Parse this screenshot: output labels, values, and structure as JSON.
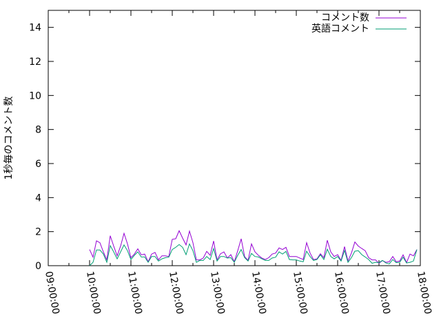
{
  "chart_data": {
    "type": "line",
    "title": "",
    "xlabel": "",
    "ylabel": "1秒毎のコメント数",
    "ylim": [
      0,
      15
    ],
    "xlim": [
      "09:00:00",
      "18:00:00"
    ],
    "grid": false,
    "legend_position": "top-right",
    "y_ticks": [
      "0",
      "2",
      "4",
      "6",
      "8",
      "10",
      "12",
      "14"
    ],
    "x_ticks": [
      "09:00:00",
      "10:00:00",
      "11:00:00",
      "12:00:00",
      "13:00:00",
      "14:00:00",
      "15:00:00",
      "16:00:00",
      "17:00:00",
      "18:00:00"
    ],
    "x": [
      "10:00",
      "10:05",
      "10:10",
      "10:15",
      "10:20",
      "10:25",
      "10:30",
      "10:35",
      "10:40",
      "10:45",
      "10:50",
      "10:55",
      "11:00",
      "11:05",
      "11:10",
      "11:15",
      "11:20",
      "11:25",
      "11:30",
      "11:35",
      "11:40",
      "11:45",
      "11:50",
      "11:55",
      "12:00",
      "12:05",
      "12:10",
      "12:15",
      "12:20",
      "12:25",
      "12:30",
      "12:35",
      "12:40",
      "12:45",
      "12:50",
      "12:55",
      "13:00",
      "13:05",
      "13:10",
      "13:15",
      "13:20",
      "13:25",
      "13:30",
      "13:35",
      "13:40",
      "13:45",
      "13:50",
      "13:55",
      "14:00",
      "14:05",
      "14:10",
      "14:15",
      "14:20",
      "14:25",
      "14:30",
      "14:35",
      "14:40",
      "14:45",
      "14:50",
      "14:55",
      "15:00",
      "15:05",
      "15:10",
      "15:15",
      "15:20",
      "15:25",
      "15:30",
      "15:35",
      "15:40",
      "15:45",
      "15:50",
      "15:55",
      "16:00",
      "16:05",
      "16:10",
      "16:15",
      "16:20",
      "16:25",
      "16:30",
      "16:35",
      "16:40",
      "16:45",
      "16:50",
      "16:55",
      "17:00",
      "17:05",
      "17:10",
      "17:15",
      "17:20",
      "17:25",
      "17:30",
      "17:35",
      "17:40",
      "17:45",
      "17:50",
      "17:55"
    ],
    "series": [
      {
        "name": "コメント数",
        "color": "#9400d3",
        "values": [
          0.95,
          0.5,
          1.46,
          1.35,
          0.81,
          0.34,
          1.76,
          1.15,
          0.58,
          1.15,
          1.9,
          1.28,
          0.47,
          0.68,
          0.99,
          0.64,
          0.68,
          0.23,
          0.68,
          0.78,
          0.34,
          0.58,
          0.58,
          0.54,
          1.55,
          1.58,
          2.05,
          1.62,
          1.22,
          2.03,
          1.35,
          0.34,
          0.34,
          0.45,
          0.84,
          0.61,
          1.45,
          0.34,
          0.7,
          0.81,
          0.45,
          0.65,
          0.23,
          0.88,
          1.58,
          0.54,
          0.31,
          1.28,
          0.81,
          0.61,
          0.45,
          0.36,
          0.47,
          0.68,
          0.74,
          1.04,
          0.95,
          1.08,
          0.54,
          0.54,
          0.54,
          0.45,
          0.36,
          1.35,
          0.74,
          0.36,
          0.4,
          0.7,
          0.47,
          1.49,
          0.81,
          0.54,
          0.65,
          0.31,
          1.12,
          0.27,
          0.74,
          1.39,
          1.15,
          1.01,
          0.88,
          0.47,
          0.34,
          0.34,
          0.14,
          0.3,
          0.2,
          0.23,
          0.54,
          0.23,
          0.27,
          0.64,
          0.18,
          0.68,
          0.58,
          0.95
        ]
      },
      {
        "name": "英語コメント",
        "color": "#009e73",
        "values": [
          0,
          0.2,
          0.92,
          0.92,
          0.68,
          0.2,
          1.18,
          0.81,
          0.4,
          0.81,
          1.22,
          0.88,
          0.36,
          0.61,
          0.81,
          0.51,
          0.51,
          0.2,
          0.54,
          0.54,
          0.27,
          0.4,
          0.47,
          0.5,
          0.95,
          1.08,
          1.24,
          1.08,
          0.65,
          1.28,
          0.88,
          0.2,
          0.31,
          0.31,
          0.54,
          0.36,
          1.01,
          0.27,
          0.54,
          0.54,
          0.45,
          0.47,
          0.2,
          0.61,
          0.95,
          0.47,
          0.27,
          0.72,
          0.54,
          0.51,
          0.4,
          0.31,
          0.31,
          0.45,
          0.5,
          0.81,
          0.68,
          0.84,
          0.36,
          0.34,
          0.34,
          0.27,
          0.23,
          0.85,
          0.54,
          0.31,
          0.36,
          0.64,
          0.36,
          0.97,
          0.54,
          0.4,
          0.54,
          0.27,
          0.9,
          0.2,
          0.47,
          0.85,
          0.88,
          0.65,
          0.51,
          0.36,
          0.14,
          0.2,
          0.18,
          0.31,
          0.16,
          0.11,
          0.36,
          0.18,
          0.2,
          0.5,
          0.16,
          0.2,
          0.27,
          0.95
        ]
      }
    ]
  }
}
